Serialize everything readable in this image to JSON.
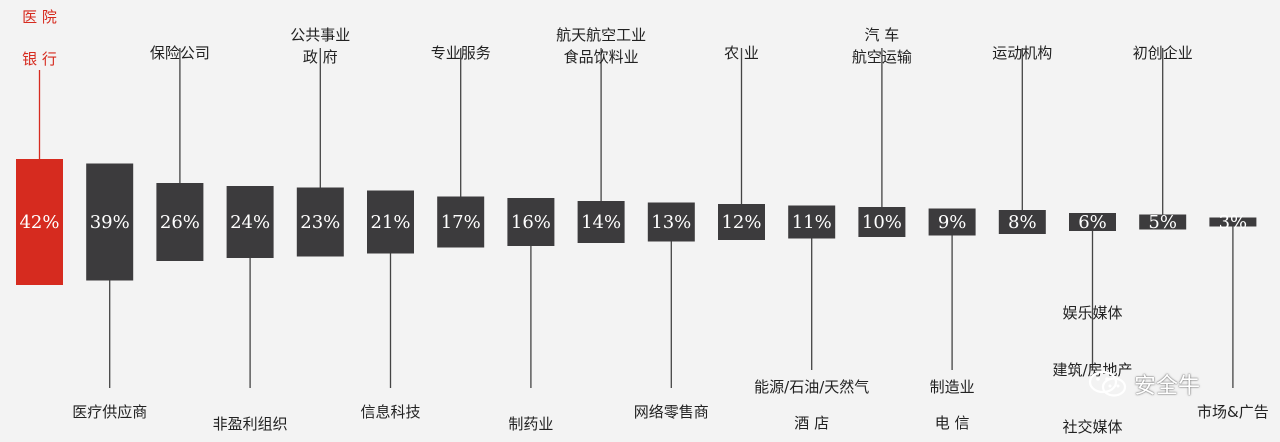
{
  "chart_data": {
    "type": "bar",
    "bars": [
      {
        "value": 42,
        "label": "42%",
        "top_labels": [
          "医 院",
          "银 行"
        ],
        "bottom_labels": [],
        "highlight": true
      },
      {
        "value": 39,
        "label": "39%",
        "top_labels": [],
        "bottom_labels": [
          "医疗供应商"
        ]
      },
      {
        "value": 26,
        "label": "26%",
        "top_labels": [
          "保险公司"
        ],
        "bottom_labels": []
      },
      {
        "value": 24,
        "label": "24%",
        "top_labels": [],
        "bottom_labels": [
          "非盈利组织"
        ]
      },
      {
        "value": 23,
        "label": "23%",
        "top_labels": [
          "公共事业",
          "政 府"
        ],
        "bottom_labels": []
      },
      {
        "value": 21,
        "label": "21%",
        "top_labels": [],
        "bottom_labels": [
          "信息科技"
        ]
      },
      {
        "value": 17,
        "label": "17%",
        "top_labels": [
          "专业服务"
        ],
        "bottom_labels": []
      },
      {
        "value": 16,
        "label": "16%",
        "top_labels": [],
        "bottom_labels": [
          "制药业"
        ]
      },
      {
        "value": 14,
        "label": "14%",
        "top_labels": [
          "航天航空工业",
          "食品饮料业"
        ],
        "bottom_labels": []
      },
      {
        "value": 13,
        "label": "13%",
        "top_labels": [],
        "bottom_labels": [
          "网络零售商"
        ]
      },
      {
        "value": 12,
        "label": "12%",
        "top_labels": [
          "农 业"
        ],
        "bottom_labels": []
      },
      {
        "value": 11,
        "label": "11%",
        "top_labels": [],
        "bottom_labels": [
          "能源/石油/天然气",
          "酒 店"
        ]
      },
      {
        "value": 10,
        "label": "10%",
        "top_labels": [
          "汽 车",
          "航空运输"
        ],
        "bottom_labels": []
      },
      {
        "value": 9,
        "label": "9%",
        "top_labels": [],
        "bottom_labels": [
          "制造业",
          "电 信"
        ]
      },
      {
        "value": 8,
        "label": "8%",
        "top_labels": [
          "运动机构"
        ],
        "bottom_labels": []
      },
      {
        "value": 6,
        "label": "6%",
        "top_labels": [],
        "bottom_labels": [
          "娱乐媒体",
          "建筑/房地产",
          "社交媒体"
        ]
      },
      {
        "value": 5,
        "label": "5%",
        "top_labels": [
          "初创企业"
        ],
        "bottom_labels": []
      },
      {
        "value": 3,
        "label": "3%",
        "top_labels": [],
        "bottom_labels": [
          "市场&广告"
        ]
      }
    ],
    "colors": {
      "bar": "#3c3b3d",
      "highlight": "#d62b1f",
      "line": "#444444",
      "background": "#f3f3f3"
    }
  },
  "watermark": {
    "text": "安全牛",
    "icon": "wechat-icon"
  }
}
